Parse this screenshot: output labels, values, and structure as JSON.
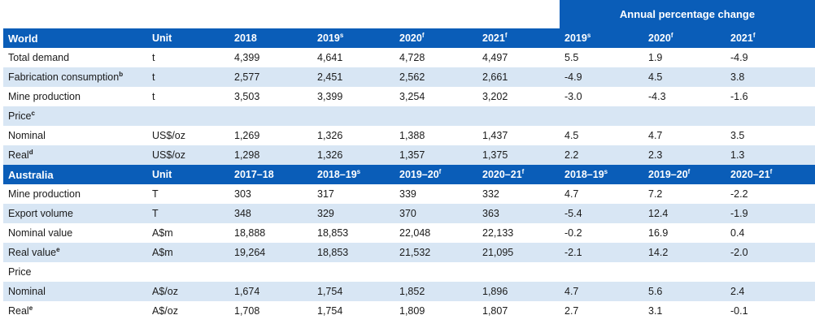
{
  "header_band": {
    "annual_percentage_change": "Annual percentage change"
  },
  "world": {
    "header": [
      {
        "text": "World",
        "sup": ""
      },
      {
        "text": "Unit",
        "sup": ""
      },
      {
        "text": "2018",
        "sup": ""
      },
      {
        "text": "2019",
        "sup": "s"
      },
      {
        "text": "2020",
        "sup": "f"
      },
      {
        "text": "2021",
        "sup": "f"
      },
      {
        "text": "2019",
        "sup": "s"
      },
      {
        "text": "2020",
        "sup": "f"
      },
      {
        "text": "2021",
        "sup": "f"
      }
    ],
    "rows": [
      {
        "label": "Total demand",
        "sup": "",
        "unit": "t",
        "values": [
          "4,399",
          "4,641",
          "4,728",
          "4,497",
          "5.5",
          "1.9",
          "-4.9"
        ]
      },
      {
        "label": "Fabrication consumption",
        "sup": "b",
        "unit": "t",
        "values": [
          "2,577",
          "2,451",
          "2,562",
          "2,661",
          "-4.9",
          "4.5",
          "3.8"
        ]
      },
      {
        "label": "Mine production",
        "sup": "",
        "unit": "t",
        "values": [
          "3,503",
          "3,399",
          "3,254",
          "3,202",
          "-3.0",
          "-4.3",
          "-1.6"
        ]
      },
      {
        "label": "Price",
        "sup": "c",
        "unit": "",
        "values": [
          "",
          "",
          "",
          "",
          "",
          "",
          ""
        ]
      },
      {
        "label": "Nominal",
        "sup": "",
        "unit": "US$/oz",
        "values": [
          "1,269",
          "1,326",
          "1,388",
          "1,437",
          "4.5",
          "4.7",
          "3.5"
        ]
      },
      {
        "label": "Real",
        "sup": "d",
        "unit": "US$/oz",
        "values": [
          "1,298",
          "1,326",
          "1,357",
          "1,375",
          "2.2",
          "2.3",
          "1.3"
        ]
      }
    ]
  },
  "australia": {
    "header": [
      {
        "text": "Australia",
        "sup": ""
      },
      {
        "text": "Unit",
        "sup": ""
      },
      {
        "text": "2017–18",
        "sup": ""
      },
      {
        "text": "2018–19",
        "sup": "s"
      },
      {
        "text": "2019–20",
        "sup": "f"
      },
      {
        "text": "2020–21",
        "sup": "f"
      },
      {
        "text": "2018–19",
        "sup": "s"
      },
      {
        "text": "2019–20",
        "sup": "f"
      },
      {
        "text": "2020–21",
        "sup": "f"
      }
    ],
    "rows": [
      {
        "label": "Mine production",
        "sup": "",
        "unit": "T",
        "values": [
          "303",
          "317",
          "339",
          "332",
          "4.7",
          "7.2",
          "-2.2"
        ]
      },
      {
        "label": "Export volume",
        "sup": "",
        "unit": "T",
        "values": [
          "348",
          "329",
          "370",
          "363",
          "-5.4",
          "12.4",
          "-1.9"
        ]
      },
      {
        "label": "Nominal value",
        "sup": "",
        "unit": "A$m",
        "values": [
          "18,888",
          "18,853",
          "22,048",
          "22,133",
          "-0.2",
          "16.9",
          "0.4"
        ]
      },
      {
        "label": "Real value",
        "sup": "e",
        "unit": "A$m",
        "values": [
          "19,264",
          "18,853",
          "21,532",
          "21,095",
          "-2.1",
          "14.2",
          "-2.0"
        ]
      },
      {
        "label": "Price",
        "sup": "",
        "unit": "",
        "values": [
          "",
          "",
          "",
          "",
          "",
          "",
          ""
        ]
      },
      {
        "label": "Nominal",
        "sup": "",
        "unit": "A$/oz",
        "values": [
          "1,674",
          "1,754",
          "1,852",
          "1,896",
          "4.7",
          "5.6",
          "2.4"
        ]
      },
      {
        "label": "Real",
        "sup": "e",
        "unit": "A$/oz",
        "values": [
          "1,708",
          "1,754",
          "1,809",
          "1,807",
          "2.7",
          "3.1",
          "-0.1"
        ]
      }
    ]
  }
}
